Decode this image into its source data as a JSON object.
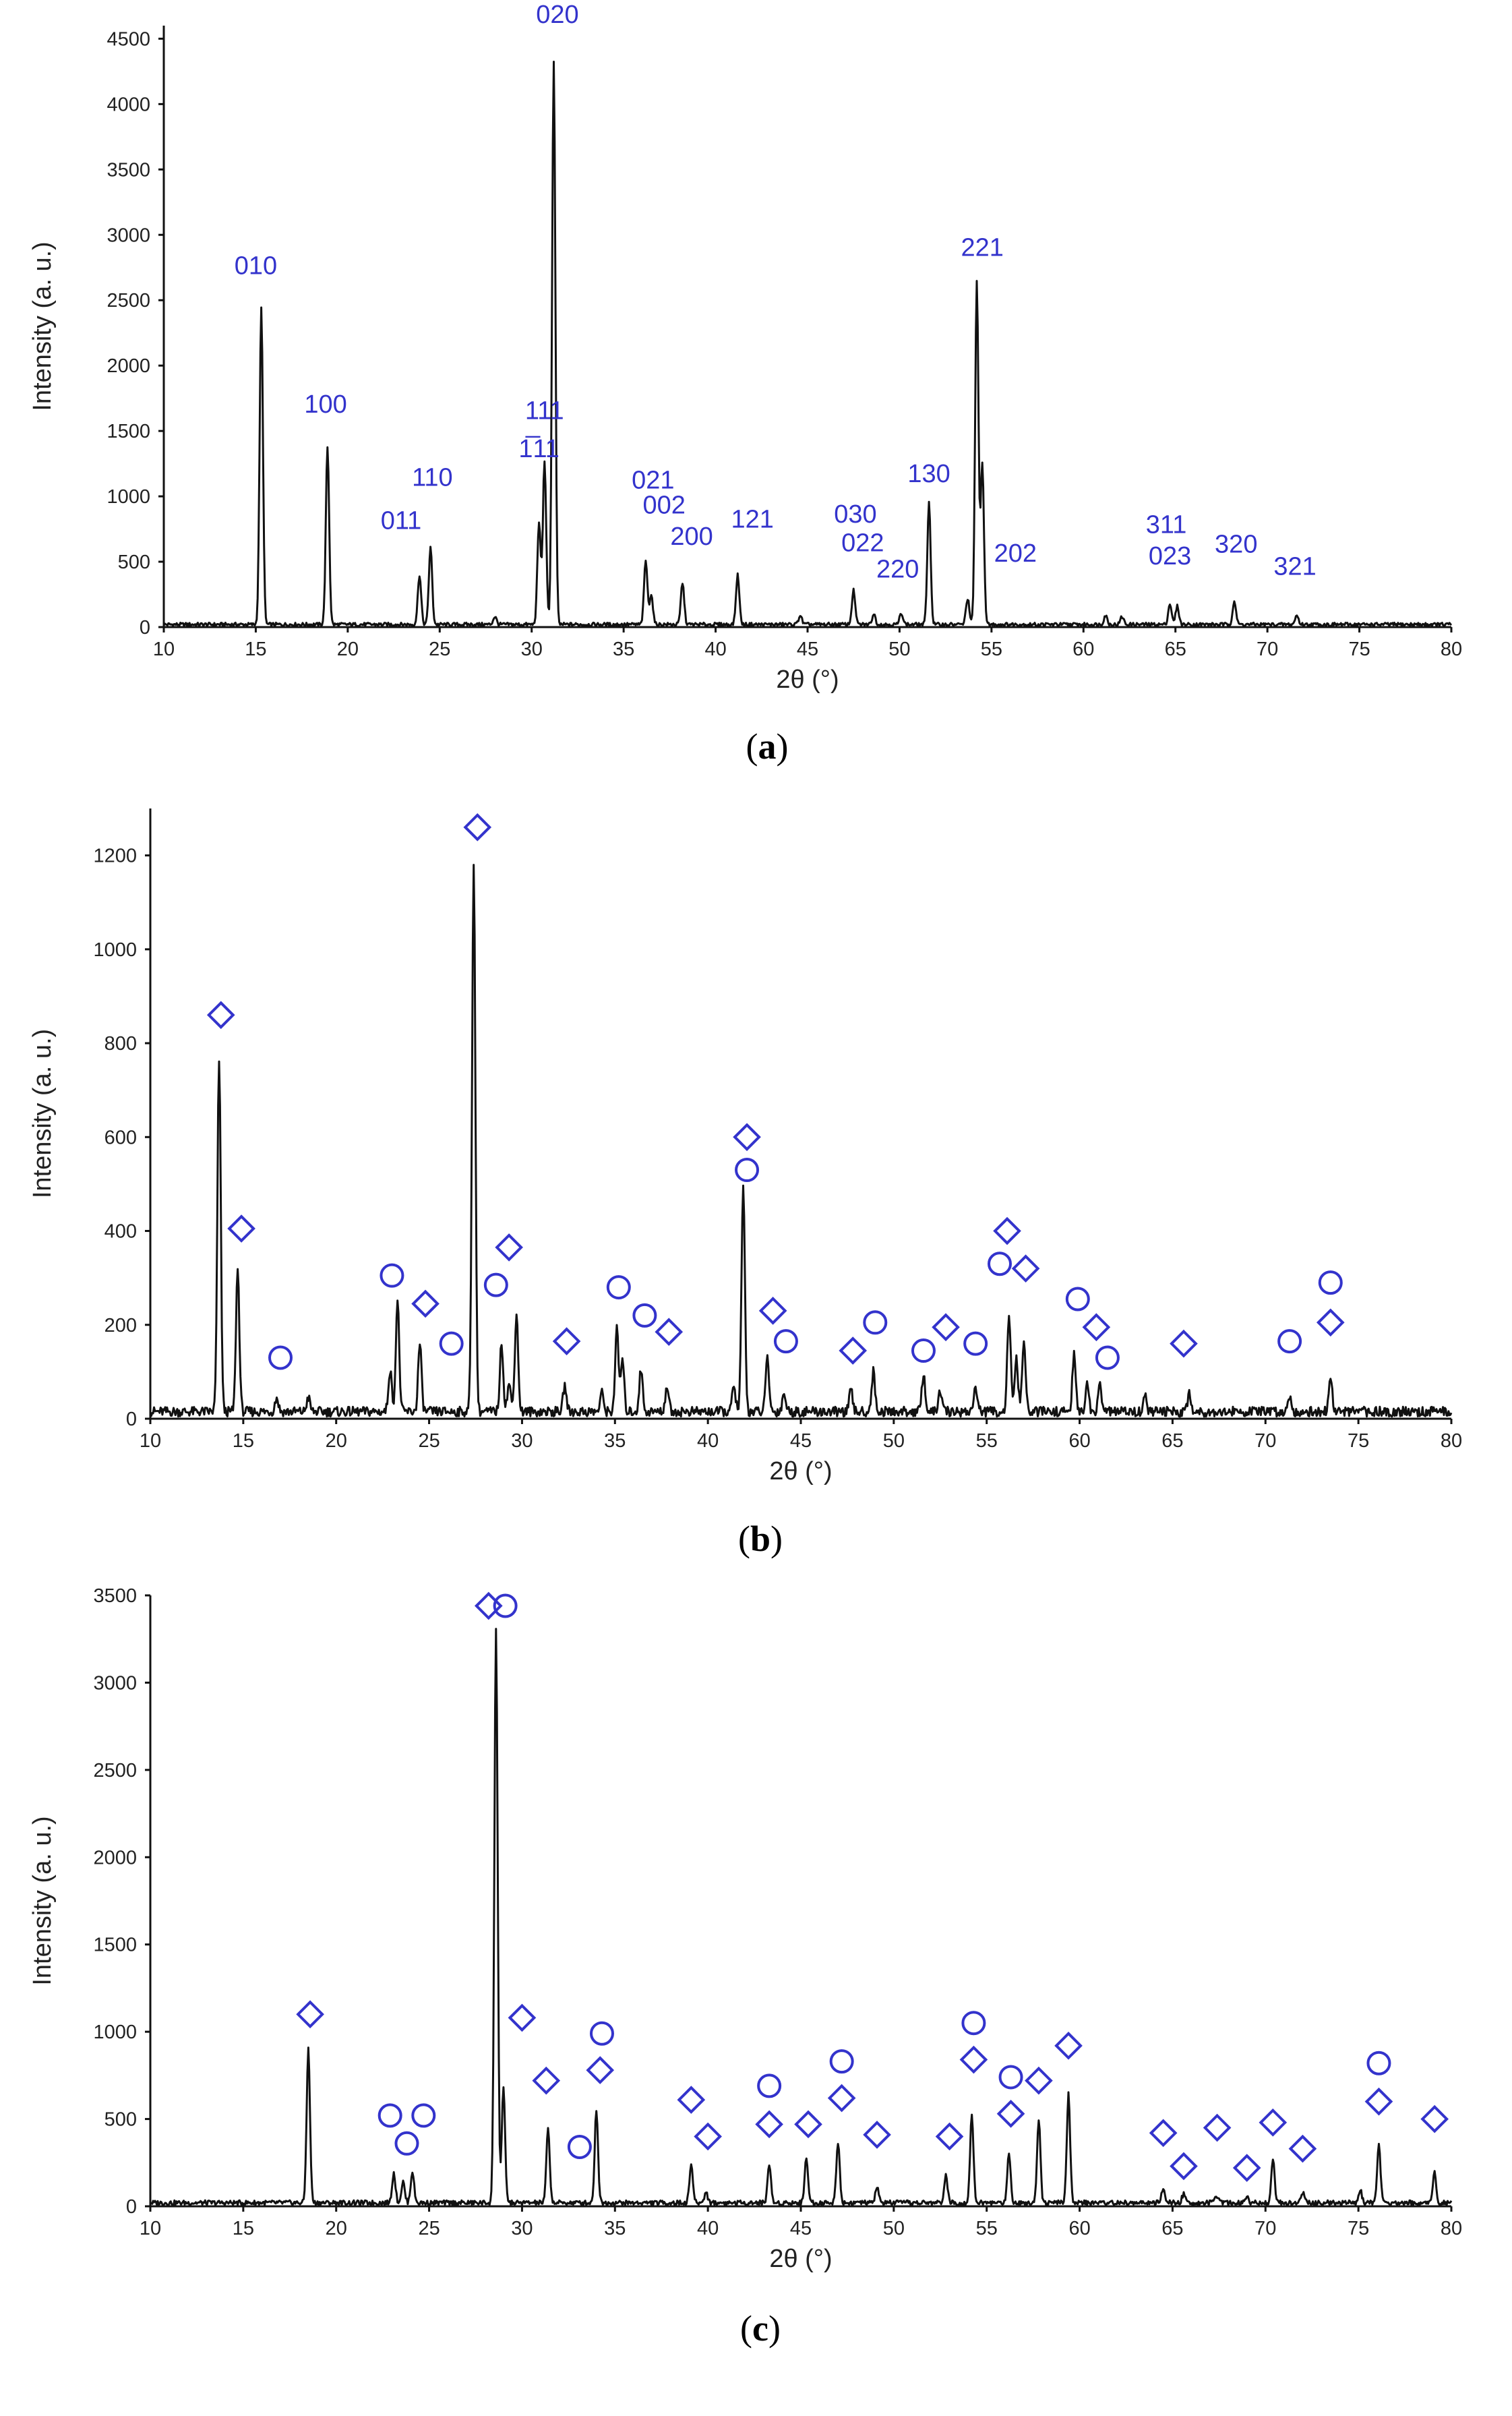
{
  "chart_data": [
    {
      "type": "line",
      "panel": "a",
      "caption": [
        "(",
        "a",
        ")"
      ],
      "xlabel": "2θ (°)",
      "ylabel": "Intensity (a. u.)",
      "xlim": [
        10,
        80
      ],
      "ylim": [
        0,
        4600
      ],
      "xticks": [
        10,
        15,
        20,
        25,
        30,
        35,
        40,
        45,
        50,
        55,
        60,
        65,
        70,
        75,
        80
      ],
      "yticks": [
        0,
        500,
        1000,
        1500,
        2000,
        2500,
        3000,
        3500,
        4000,
        4500
      ],
      "baseline": 20,
      "peaks": [
        {
          "x": 15.3,
          "y": 2420
        },
        {
          "x": 18.9,
          "y": 1360
        },
        {
          "x": 23.9,
          "y": 380
        },
        {
          "x": 24.5,
          "y": 590
        },
        {
          "x": 28.0,
          "y": 60
        },
        {
          "x": 30.4,
          "y": 780
        },
        {
          "x": 30.7,
          "y": 1250
        },
        {
          "x": 31.2,
          "y": 4300
        },
        {
          "x": 36.2,
          "y": 490
        },
        {
          "x": 36.5,
          "y": 230
        },
        {
          "x": 38.2,
          "y": 320
        },
        {
          "x": 41.2,
          "y": 380
        },
        {
          "x": 44.6,
          "y": 70
        },
        {
          "x": 47.5,
          "y": 260
        },
        {
          "x": 48.6,
          "y": 80
        },
        {
          "x": 50.1,
          "y": 90
        },
        {
          "x": 51.6,
          "y": 930
        },
        {
          "x": 53.7,
          "y": 200
        },
        {
          "x": 54.2,
          "y": 2620
        },
        {
          "x": 54.5,
          "y": 1240
        },
        {
          "x": 61.2,
          "y": 70
        },
        {
          "x": 62.1,
          "y": 60
        },
        {
          "x": 64.7,
          "y": 160
        },
        {
          "x": 65.1,
          "y": 140
        },
        {
          "x": 68.2,
          "y": 180
        },
        {
          "x": 71.6,
          "y": 70
        }
      ],
      "annotations": [
        {
          "text": "010",
          "x": 15.0,
          "y": 2700
        },
        {
          "text": "100",
          "x": 18.8,
          "y": 1640
        },
        {
          "text": "011",
          "x": 22.9,
          "y": 750
        },
        {
          "text": "110",
          "x": 24.6,
          "y": 1080
        },
        {
          "text": "111",
          "x": 30.7,
          "y": 1590
        },
        {
          "text": "1̅11",
          "x": 30.4,
          "y": 1300
        },
        {
          "text": "020",
          "x": 31.4,
          "y": 4620
        },
        {
          "text": "021",
          "x": 36.6,
          "y": 1060
        },
        {
          "text": "002",
          "x": 37.2,
          "y": 870
        },
        {
          "text": "200",
          "x": 38.7,
          "y": 630
        },
        {
          "text": "121",
          "x": 42.0,
          "y": 760
        },
        {
          "text": "030",
          "x": 47.6,
          "y": 800
        },
        {
          "text": "022",
          "x": 48.0,
          "y": 580
        },
        {
          "text": "220",
          "x": 49.9,
          "y": 380
        },
        {
          "text": "130",
          "x": 51.6,
          "y": 1110
        },
        {
          "text": "202",
          "x": 56.3,
          "y": 500
        },
        {
          "text": "221",
          "x": 54.5,
          "y": 2840
        },
        {
          "text": "311",
          "x": 64.5,
          "y": 720
        },
        {
          "text": "023",
          "x": 64.7,
          "y": 480
        },
        {
          "text": "320",
          "x": 68.3,
          "y": 570
        },
        {
          "text": "321",
          "x": 71.5,
          "y": 400
        }
      ],
      "markers": []
    },
    {
      "type": "line",
      "panel": "b",
      "caption": [
        "(",
        "b",
        ")"
      ],
      "xlabel": "2θ (°)",
      "ylabel": "Intensity (a. u.)",
      "xlim": [
        10,
        80
      ],
      "ylim": [
        0,
        1300
      ],
      "xticks": [
        10,
        15,
        20,
        25,
        30,
        35,
        40,
        45,
        50,
        55,
        60,
        65,
        70,
        75,
        80
      ],
      "yticks": [
        0,
        200,
        400,
        600,
        800,
        1000,
        1200
      ],
      "baseline": 15,
      "peaks": [
        {
          "x": 13.7,
          "y": 750
        },
        {
          "x": 14.7,
          "y": 305
        },
        {
          "x": 16.8,
          "y": 30
        },
        {
          "x": 18.5,
          "y": 30
        },
        {
          "x": 22.9,
          "y": 90
        },
        {
          "x": 23.3,
          "y": 235
        },
        {
          "x": 24.5,
          "y": 145
        },
        {
          "x": 27.4,
          "y": 1175
        },
        {
          "x": 28.9,
          "y": 145
        },
        {
          "x": 29.3,
          "y": 60
        },
        {
          "x": 29.7,
          "y": 210
        },
        {
          "x": 32.3,
          "y": 55
        },
        {
          "x": 34.3,
          "y": 40
        },
        {
          "x": 35.1,
          "y": 175
        },
        {
          "x": 35.4,
          "y": 110
        },
        {
          "x": 36.4,
          "y": 90
        },
        {
          "x": 37.8,
          "y": 55
        },
        {
          "x": 41.4,
          "y": 55
        },
        {
          "x": 41.9,
          "y": 480
        },
        {
          "x": 43.2,
          "y": 115
        },
        {
          "x": 44.1,
          "y": 40
        },
        {
          "x": 47.7,
          "y": 45
        },
        {
          "x": 48.9,
          "y": 85
        },
        {
          "x": 51.6,
          "y": 80
        },
        {
          "x": 52.5,
          "y": 45
        },
        {
          "x": 54.4,
          "y": 55
        },
        {
          "x": 56.2,
          "y": 210
        },
        {
          "x": 56.6,
          "y": 110
        },
        {
          "x": 57.0,
          "y": 150
        },
        {
          "x": 59.7,
          "y": 120
        },
        {
          "x": 60.4,
          "y": 60
        },
        {
          "x": 61.1,
          "y": 55
        },
        {
          "x": 63.5,
          "y": 35
        },
        {
          "x": 65.9,
          "y": 40
        },
        {
          "x": 71.3,
          "y": 35
        },
        {
          "x": 73.5,
          "y": 75
        }
      ],
      "annotations": [],
      "markers": [
        {
          "shape": "diamond",
          "x": 13.8,
          "y": 860
        },
        {
          "shape": "diamond",
          "x": 14.9,
          "y": 405
        },
        {
          "shape": "circle",
          "x": 17.0,
          "y": 130
        },
        {
          "shape": "circle",
          "x": 23.0,
          "y": 305
        },
        {
          "shape": "diamond",
          "x": 24.8,
          "y": 245
        },
        {
          "shape": "circle",
          "x": 26.2,
          "y": 160
        },
        {
          "shape": "diamond",
          "x": 27.6,
          "y": 1260
        },
        {
          "shape": "circle",
          "x": 28.6,
          "y": 285
        },
        {
          "shape": "diamond",
          "x": 29.3,
          "y": 365
        },
        {
          "shape": "diamond",
          "x": 32.4,
          "y": 165
        },
        {
          "shape": "circle",
          "x": 35.2,
          "y": 280
        },
        {
          "shape": "circle",
          "x": 36.6,
          "y": 220
        },
        {
          "shape": "diamond",
          "x": 37.9,
          "y": 185
        },
        {
          "shape": "diamond",
          "x": 42.1,
          "y": 600
        },
        {
          "shape": "circle",
          "x": 42.1,
          "y": 530
        },
        {
          "shape": "diamond",
          "x": 43.5,
          "y": 230
        },
        {
          "shape": "circle",
          "x": 44.2,
          "y": 165
        },
        {
          "shape": "diamond",
          "x": 47.8,
          "y": 145
        },
        {
          "shape": "circle",
          "x": 49.0,
          "y": 205
        },
        {
          "shape": "circle",
          "x": 51.6,
          "y": 145
        },
        {
          "shape": "diamond",
          "x": 52.8,
          "y": 195
        },
        {
          "shape": "circle",
          "x": 54.4,
          "y": 160
        },
        {
          "shape": "diamond",
          "x": 56.1,
          "y": 400
        },
        {
          "shape": "circle",
          "x": 55.7,
          "y": 330
        },
        {
          "shape": "diamond",
          "x": 57.1,
          "y": 320
        },
        {
          "shape": "circle",
          "x": 59.9,
          "y": 255
        },
        {
          "shape": "diamond",
          "x": 60.9,
          "y": 195
        },
        {
          "shape": "circle",
          "x": 61.5,
          "y": 130
        },
        {
          "shape": "diamond",
          "x": 65.6,
          "y": 160
        },
        {
          "shape": "circle",
          "x": 71.3,
          "y": 165
        },
        {
          "shape": "circle",
          "x": 73.5,
          "y": 290
        },
        {
          "shape": "diamond",
          "x": 73.5,
          "y": 205
        }
      ]
    },
    {
      "type": "line",
      "panel": "c",
      "caption": [
        "(",
        "c",
        ")"
      ],
      "xlabel": "2θ (°)",
      "ylabel": "Intensity (a. u.)",
      "xlim": [
        10,
        80
      ],
      "ylim": [
        0,
        3500
      ],
      "xticks": [
        10,
        15,
        20,
        25,
        30,
        35,
        40,
        45,
        50,
        55,
        60,
        65,
        70,
        75,
        80
      ],
      "yticks": [
        0,
        500,
        1000,
        1500,
        2000,
        2500,
        3000,
        3500
      ],
      "baseline": 20,
      "peaks": [
        {
          "x": 18.5,
          "y": 880
        },
        {
          "x": 23.1,
          "y": 170
        },
        {
          "x": 23.6,
          "y": 120
        },
        {
          "x": 24.1,
          "y": 180
        },
        {
          "x": 28.6,
          "y": 3290
        },
        {
          "x": 29.0,
          "y": 650
        },
        {
          "x": 31.4,
          "y": 420
        },
        {
          "x": 34.0,
          "y": 530
        },
        {
          "x": 39.1,
          "y": 220
        },
        {
          "x": 39.9,
          "y": 60
        },
        {
          "x": 43.3,
          "y": 220
        },
        {
          "x": 45.3,
          "y": 260
        },
        {
          "x": 47.0,
          "y": 350
        },
        {
          "x": 49.1,
          "y": 90
        },
        {
          "x": 52.8,
          "y": 160
        },
        {
          "x": 54.2,
          "y": 510
        },
        {
          "x": 56.2,
          "y": 280
        },
        {
          "x": 57.8,
          "y": 480
        },
        {
          "x": 59.4,
          "y": 620
        },
        {
          "x": 64.5,
          "y": 80
        },
        {
          "x": 65.6,
          "y": 50
        },
        {
          "x": 67.4,
          "y": 40
        },
        {
          "x": 69.0,
          "y": 40
        },
        {
          "x": 70.4,
          "y": 250
        },
        {
          "x": 72.0,
          "y": 60
        },
        {
          "x": 75.1,
          "y": 70
        },
        {
          "x": 76.1,
          "y": 330
        },
        {
          "x": 79.1,
          "y": 170
        }
      ],
      "annotations": [],
      "markers": [
        {
          "shape": "diamond",
          "x": 18.6,
          "y": 1100
        },
        {
          "shape": "circle",
          "x": 22.9,
          "y": 520
        },
        {
          "shape": "circle",
          "x": 23.8,
          "y": 360
        },
        {
          "shape": "circle",
          "x": 24.7,
          "y": 520
        },
        {
          "shape": "diamond",
          "x": 28.2,
          "y": 3440
        },
        {
          "shape": "circle",
          "x": 29.1,
          "y": 3440
        },
        {
          "shape": "diamond",
          "x": 30.0,
          "y": 1080
        },
        {
          "shape": "diamond",
          "x": 31.3,
          "y": 720
        },
        {
          "shape": "circle",
          "x": 33.1,
          "y": 340
        },
        {
          "shape": "circle",
          "x": 34.3,
          "y": 990
        },
        {
          "shape": "diamond",
          "x": 34.2,
          "y": 780
        },
        {
          "shape": "diamond",
          "x": 39.1,
          "y": 610
        },
        {
          "shape": "diamond",
          "x": 40.0,
          "y": 400
        },
        {
          "shape": "circle",
          "x": 43.3,
          "y": 690
        },
        {
          "shape": "diamond",
          "x": 43.3,
          "y": 470
        },
        {
          "shape": "diamond",
          "x": 45.4,
          "y": 470
        },
        {
          "shape": "circle",
          "x": 47.2,
          "y": 830
        },
        {
          "shape": "diamond",
          "x": 47.2,
          "y": 620
        },
        {
          "shape": "diamond",
          "x": 49.1,
          "y": 410
        },
        {
          "shape": "diamond",
          "x": 53.0,
          "y": 400
        },
        {
          "shape": "circle",
          "x": 54.3,
          "y": 1050
        },
        {
          "shape": "diamond",
          "x": 54.3,
          "y": 840
        },
        {
          "shape": "circle",
          "x": 56.3,
          "y": 740
        },
        {
          "shape": "diamond",
          "x": 56.3,
          "y": 530
        },
        {
          "shape": "diamond",
          "x": 57.8,
          "y": 720
        },
        {
          "shape": "diamond",
          "x": 59.4,
          "y": 920
        },
        {
          "shape": "diamond",
          "x": 64.5,
          "y": 420
        },
        {
          "shape": "diamond",
          "x": 65.6,
          "y": 230
        },
        {
          "shape": "diamond",
          "x": 67.4,
          "y": 450
        },
        {
          "shape": "diamond",
          "x": 69.0,
          "y": 220
        },
        {
          "shape": "diamond",
          "x": 70.4,
          "y": 480
        },
        {
          "shape": "diamond",
          "x": 72.0,
          "y": 330
        },
        {
          "shape": "circle",
          "x": 76.1,
          "y": 820
        },
        {
          "shape": "diamond",
          "x": 76.1,
          "y": 600
        },
        {
          "shape": "diamond",
          "x": 79.1,
          "y": 500
        }
      ]
    }
  ],
  "colors": {
    "trace": "#111111",
    "annotation": "#3333cc",
    "marker": "#3333cc"
  }
}
